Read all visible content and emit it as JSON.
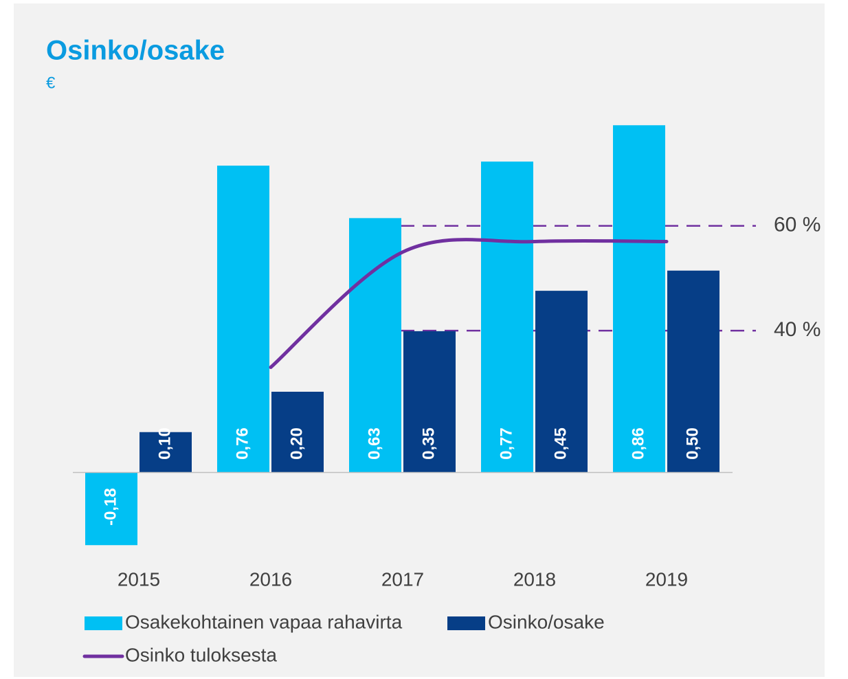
{
  "chart_data": {
    "type": "bar",
    "title": "Osinko/osake",
    "subtitle": "€",
    "categories": [
      "2015",
      "2016",
      "2017",
      "2018",
      "2019"
    ],
    "series": [
      {
        "name": "Osakekohtainen vapaa rahavirta",
        "color": "#00c0f3",
        "values": [
          -0.18,
          0.76,
          0.63,
          0.77,
          0.86
        ],
        "value_labels": [
          "-0,18",
          "0,76",
          "0,63",
          "0,77",
          "0,86"
        ]
      },
      {
        "name": "Osinko/osake",
        "color": "#063e87",
        "values": [
          0.1,
          0.2,
          0.35,
          0.45,
          0.5
        ],
        "value_labels": [
          "0,10",
          "0,20",
          "0,35",
          "0,45",
          "0,50"
        ]
      },
      {
        "name": "Osinko tuloksesta",
        "type": "line",
        "axis": "y2",
        "color": "#7030a0",
        "values": [
          null,
          33,
          55,
          57,
          57
        ]
      }
    ],
    "ylim": [
      -0.2,
      1.0
    ],
    "y2lim": [
      -2.5,
      90
    ],
    "y2ticks": [
      {
        "value": 40,
        "label": "40 %"
      },
      {
        "value": 60,
        "label": "60 %"
      }
    ],
    "grid": true
  }
}
